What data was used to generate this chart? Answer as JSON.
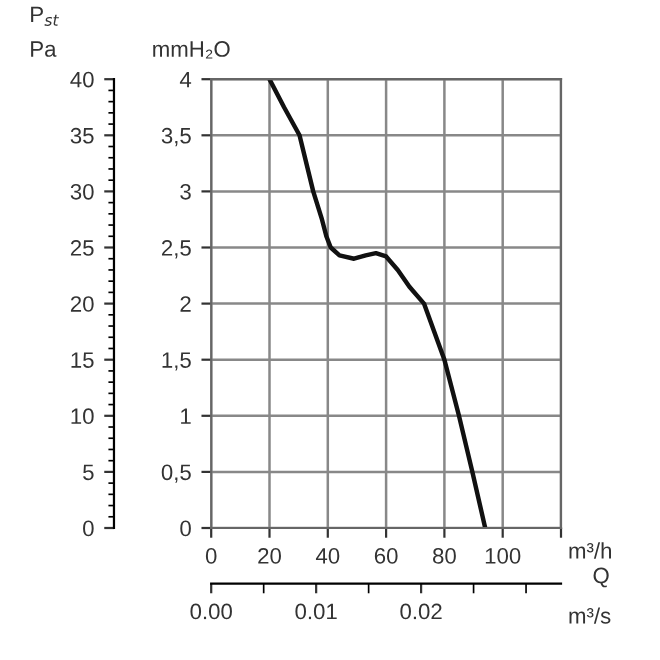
{
  "chart_data": {
    "type": "line",
    "xlabel": "m³/h",
    "ylabel": "mmH₂O",
    "y2label": "Pa",
    "x2label": "m³/s",
    "annotations": [
      "P$_{st}$",
      "Q"
    ],
    "series": [
      {
        "color": "#111111",
        "x": [
          20,
          25,
          30.3,
          35,
          38,
          39.5,
          41,
          44,
          49,
          53,
          56.5,
          60,
          64,
          68,
          73,
          80,
          85,
          89.6,
          94
        ],
        "values": [
          4,
          3.75,
          3.5,
          3.0,
          2.75,
          2.6,
          2.5,
          2.43,
          2.4,
          2.43,
          2.45,
          2.42,
          2.3,
          2.15,
          2.0,
          1.5,
          1.0,
          0.5,
          0
        ]
      }
    ],
    "xlim": [
      0,
      120
    ],
    "xticks": [
      0,
      20,
      40,
      60,
      80,
      100,
      {
        "value": 120,
        "label": null
      }
    ],
    "ylim": [
      0,
      4
    ],
    "yticks": [
      0,
      {
        "value": 0.5,
        "label": "0,5"
      },
      1,
      {
        "value": 1.5,
        "label": "1,5"
      },
      2,
      {
        "value": 2.5,
        "label": "2,5"
      },
      3,
      {
        "value": 3.5,
        "label": "3,5"
      },
      4
    ],
    "y2lim": [
      0,
      40
    ],
    "y2ticks": [
      0,
      5,
      10,
      15,
      20,
      25,
      30,
      35,
      40
    ],
    "x2lim": [
      0,
      0.03333
    ],
    "x2ticks": [
      {
        "value": 0,
        "label": "0.00"
      },
      {
        "value": 0.01,
        "label": "0.01"
      },
      {
        "value": 0.02,
        "label": "0.02"
      }
    ],
    "grid": true,
    "legend": false,
    "marker": "none",
    "line_style": "solid"
  }
}
